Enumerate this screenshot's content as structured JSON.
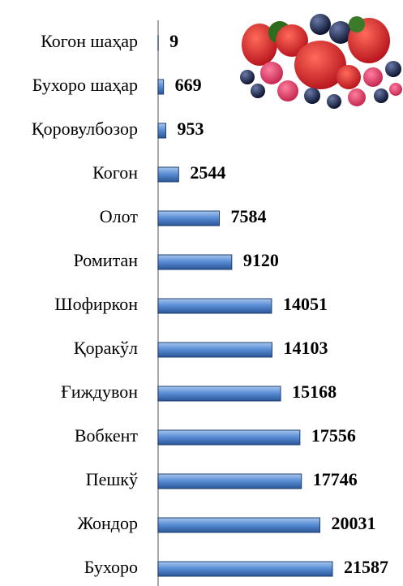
{
  "chart_data": {
    "type": "bar",
    "orientation": "horizontal",
    "categories": [
      "Когон шаҳар",
      "Бухоро шаҳар",
      "Қоровулбозор",
      "Когон",
      "Олот",
      "Ромитан",
      "Шофиркон",
      "Қоракўл",
      "Ғиждувон",
      "Вобкент",
      "Пешкў",
      "Жондор",
      "Бухоро"
    ],
    "values": [
      9,
      669,
      953,
      2544,
      7584,
      9120,
      14051,
      14103,
      15168,
      17556,
      17746,
      20031,
      21587
    ],
    "color": "#4f81bd"
  }
}
